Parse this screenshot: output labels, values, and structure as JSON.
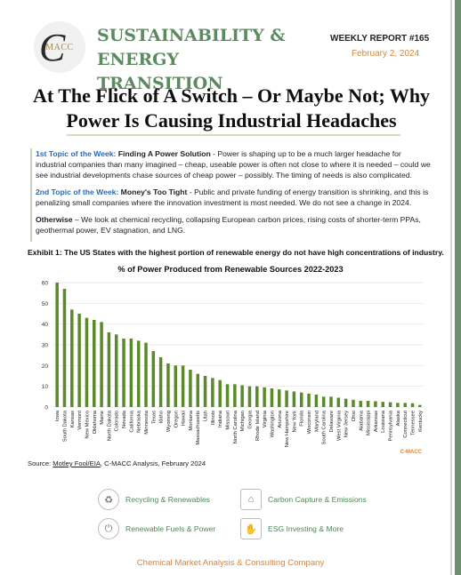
{
  "header": {
    "logo_text": "MACC",
    "brand_title": "SUSTAINABILITY & ENERGY TRANSITION",
    "report_number": "WEEKLY REPORT #165",
    "date": "February 2, 2024"
  },
  "headline": "At The Flick of A Switch – Or Maybe Not; Why Power Is Causing Industrial Headaches",
  "topics": {
    "first": {
      "label": "1st Topic of the Week:",
      "heading": "Finding A Power Solution",
      "text": " - Power is shaping up to be a much larger headache for industrial companies than many imagined – cheap, useable power is often not close to where it is needed – could we see industrial developments chase sources of cheap power – possibly. The timing of needs is also complicated."
    },
    "second": {
      "label": "2nd Topic of the Week:",
      "heading": "Money's Too Tight",
      "text": " - Public and private funding of energy transition is shrinking, and this is penalizing small companies where the innovation investment is most needed. We do not see a change in 2024."
    },
    "otherwise": {
      "label": "Otherwise",
      "text": " – We look at chemical recycling, collapsing European carbon prices, rising costs of shorter-term PPAs, geothermal power, EV stagnation, and LNG."
    }
  },
  "exhibit_caption": "Exhibit 1: The US States with the highest portion of renewable energy do not have high concentrations of industry.",
  "chart_data": {
    "type": "bar",
    "title": "% of Power Produced from Renewable Sources 2022-2023",
    "xlabel": "",
    "ylabel": "",
    "ylim": [
      0,
      60
    ],
    "yticks": [
      0,
      10,
      20,
      30,
      40,
      50,
      60
    ],
    "categories": [
      "Iowa",
      "South Dakota",
      "Kansas",
      "Vermont",
      "New Mexico",
      "Oklahoma",
      "Maine",
      "North Dakota",
      "Colorado",
      "Nevada",
      "California",
      "Nebraska",
      "Minnesota",
      "Texas",
      "Idaho",
      "Wyoming",
      "Oregon",
      "Hawaii",
      "Montana",
      "Massachusetts",
      "Utah",
      "Illinois",
      "Indiana",
      "Missouri",
      "North Carolina",
      "Michigan",
      "Georgia",
      "Rhode Island",
      "Virginia",
      "Washington",
      "Arizona",
      "New Hampshire",
      "New York",
      "Florida",
      "Wisconsin",
      "Maryland",
      "South Carolina",
      "Delaware",
      "West Virginia",
      "New Jersey",
      "Ohio",
      "Alabama",
      "Mississippi",
      "Arkansas",
      "Louisiana",
      "Pennsylvania",
      "Alaska",
      "Connecticut",
      "Tennessee",
      "Kentucky"
    ],
    "values": [
      60,
      57,
      47,
      45,
      43,
      42,
      41,
      36,
      35,
      33,
      33,
      32,
      31,
      27,
      24,
      21,
      20,
      20,
      18,
      16,
      15,
      14,
      13,
      11,
      11,
      10.5,
      10,
      10,
      9.5,
      9,
      8.5,
      8,
      7.5,
      7,
      6.5,
      6,
      5,
      5,
      4.5,
      4,
      3.5,
      3,
      3,
      2.8,
      2.5,
      2.3,
      2,
      2,
      1.8,
      1
    ],
    "bar_color": "#5a8a2a",
    "grid": true,
    "watermark": "C-MACC"
  },
  "source": {
    "prefix": "Source: ",
    "link": "Motley Fool/EIA",
    "suffix": ", C-MACC Analysis, February 2024"
  },
  "nav": {
    "recycling": "Recycling & Renewables",
    "carbon": "Carbon Capture & Emissions",
    "fuels": "Renewable Fuels & Power",
    "esg": "ESG Investing & More"
  },
  "footer": "Chemical Market Analysis & Consulting Company",
  "colors": {
    "brand_green": "#5a8a5e",
    "accent_orange": "#d7863a",
    "topic_blue": "#2a6ab3"
  }
}
